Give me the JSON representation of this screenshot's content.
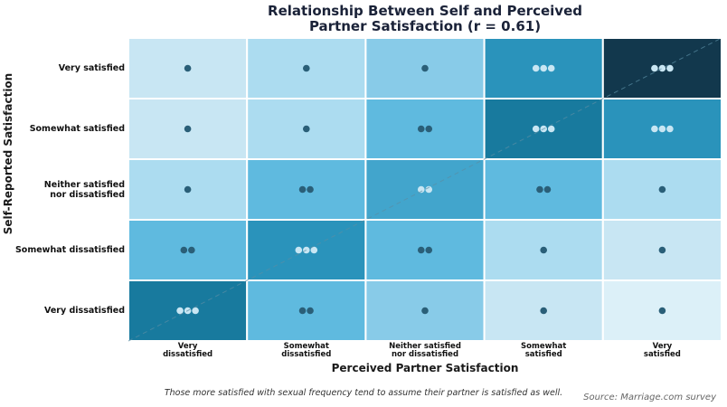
{
  "chart_data": {
    "type": "heatmap",
    "title_line1": "Relationship Between Self and Perceived",
    "title_line2": "Partner Satisfaction (r = 0.61)",
    "xlabel": "Perceived Partner Satisfaction",
    "ylabel": "Self-Reported Satisfaction",
    "x_categories": [
      [
        "Very",
        "dissatisfied"
      ],
      [
        "Somewhat",
        "dissatisfied"
      ],
      [
        "Neither satisfied",
        "nor dissatisfied"
      ],
      [
        "Somewhat",
        "satisfied"
      ],
      [
        "Very",
        "satisfied"
      ]
    ],
    "y_categories": [
      [
        "Very satisfied"
      ],
      [
        "Somewhat satisfied"
      ],
      [
        "Neither satisfied",
        "nor dissatisfied"
      ],
      [
        "Somewhat dissatisfied"
      ],
      [
        "Very dissatisfied"
      ]
    ],
    "dot_counts": [
      [
        1,
        1,
        1,
        3,
        3
      ],
      [
        1,
        1,
        2,
        3,
        3
      ],
      [
        1,
        2,
        2,
        2,
        1
      ],
      [
        2,
        3,
        2,
        1,
        1
      ],
      [
        3,
        2,
        1,
        1,
        1
      ]
    ],
    "cell_colors": [
      [
        "#c8e6f3",
        "#acdcf0",
        "#88cbe8",
        "#2a93bb",
        "#12384d"
      ],
      [
        "#c8e6f3",
        "#acdcf0",
        "#5fbadf",
        "#187a9e",
        "#2a93bb"
      ],
      [
        "#acdcf0",
        "#5fbadf",
        "#42a5cc",
        "#5fbadf",
        "#acdcf0"
      ],
      [
        "#5fbadf",
        "#2a93bb",
        "#5fbadf",
        "#acdcf0",
        "#c8e6f3"
      ],
      [
        "#187a9e",
        "#5fbadf",
        "#88cbe8",
        "#c8e6f3",
        "#dcf0f8"
      ]
    ],
    "diagonal_reference": true,
    "note": "Those more satisfied with sexual frequency tend to assume their partner is satisfied as well.",
    "source": "Source: Marriage.com survey"
  }
}
